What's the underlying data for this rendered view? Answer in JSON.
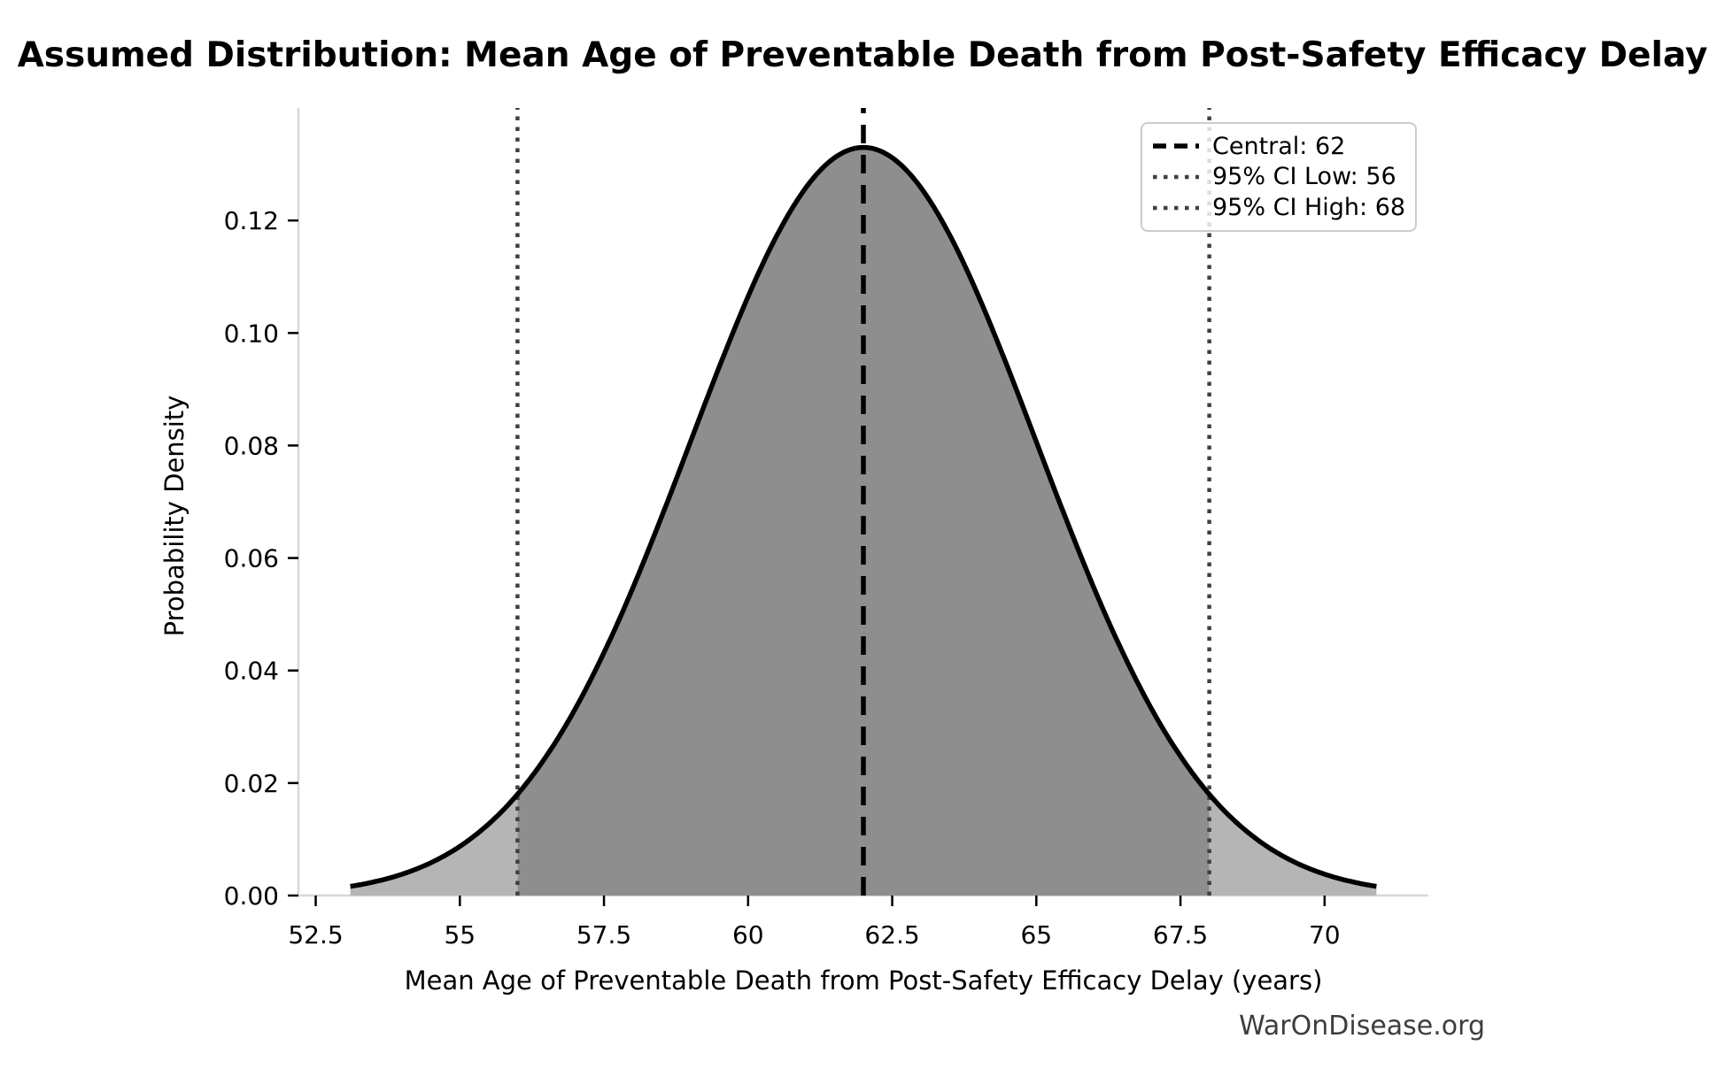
{
  "title": "Assumed Distribution: Mean Age of Preventable Death from Post-Safety Efficacy Delay",
  "watermark": "WarOnDisease.org",
  "chart_data": {
    "type": "area",
    "distribution": "normal",
    "title": "Assumed Distribution: Mean Age of Preventable Death from Post-Safety Efficacy Delay",
    "xlabel": "Mean Age of Preventable Death from Post-Safety Efficacy Delay (years)",
    "ylabel": "Probability Density",
    "mean": 62,
    "sigma": 3.0,
    "peak_density": 0.133,
    "ci_low": 56,
    "ci_high": 68,
    "curve_x_range": [
      53.1,
      70.9
    ],
    "xlim": [
      52.2,
      71.8
    ],
    "ylim": [
      0,
      0.14
    ],
    "x_ticks": [
      52.5,
      55,
      57.5,
      60,
      62.5,
      65,
      67.5,
      70
    ],
    "x_tick_labels": [
      "52.5",
      "55",
      "57.5",
      "60",
      "62.5",
      "65",
      "67.5",
      "70"
    ],
    "y_ticks": [
      0.0,
      0.02,
      0.04,
      0.06,
      0.08,
      0.1,
      0.12
    ],
    "y_tick_labels": [
      "0.00",
      "0.02",
      "0.04",
      "0.06",
      "0.08",
      "0.10",
      "0.12"
    ],
    "grid": false,
    "legend_position": "upper right",
    "colors": {
      "curve": "#000000",
      "fill_ci": "#8e8e8e",
      "fill_tail": "#b5b5b5",
      "central_line": "#000000",
      "ci_line": "#404040",
      "spine": "#d8d8d8",
      "tick": "#000000",
      "tick_label": "#000000",
      "watermark_text": "#3d3d3d",
      "legend_border": "#cccccc"
    }
  },
  "legend": {
    "items": [
      {
        "label": "Central: 62",
        "style": "dashed"
      },
      {
        "label": "95% CI Low: 56",
        "style": "dotted"
      },
      {
        "label": "95% CI High: 68",
        "style": "dotted"
      }
    ]
  }
}
